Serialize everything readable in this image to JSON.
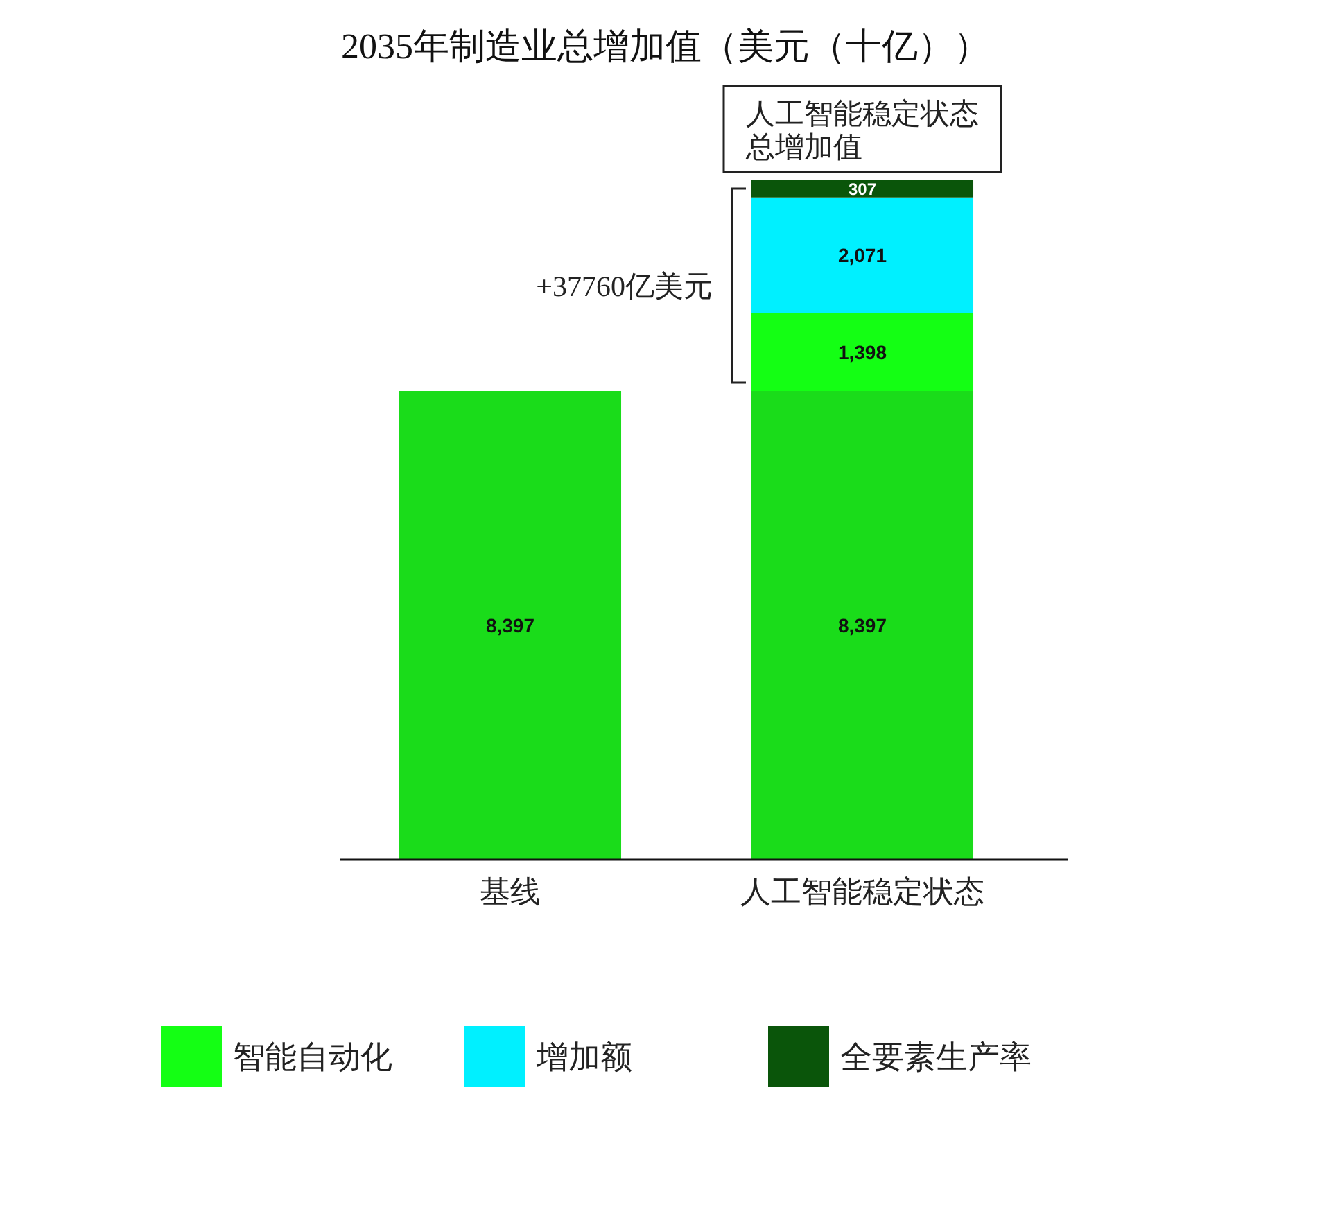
{
  "chart_data": {
    "type": "bar",
    "title": "2035年制造业总增加值（美元（十亿））",
    "categories": [
      "基线",
      "人工智能稳定状态"
    ],
    "stacked": true,
    "series": [
      {
        "color": "#1adc1a",
        "values": [
          8397,
          8397
        ],
        "value_labels": [
          "8,397",
          "8,397"
        ]
      },
      {
        "name": "智能自动化",
        "color": "#14ff14",
        "values": [
          null,
          1398
        ],
        "value_labels": [
          null,
          "1,398"
        ]
      },
      {
        "name": "增加额",
        "color": "#00f0ff",
        "values": [
          null,
          2071
        ],
        "value_labels": [
          null,
          "2,071"
        ]
      },
      {
        "name": "全要素生产率",
        "color": "#0a550a",
        "values": [
          null,
          307
        ],
        "value_labels": [
          null,
          "307"
        ]
      }
    ],
    "legend": "bottom",
    "annotations": [
      "人工智能稳定状态总增加值",
      "+37760亿美元"
    ]
  }
}
